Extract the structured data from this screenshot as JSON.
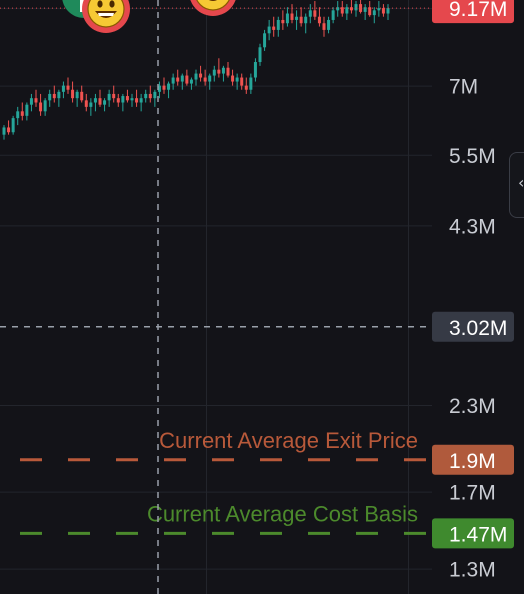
{
  "chart_data": {
    "type": "candlestick",
    "y_scale": "log",
    "ylim": [
      1.19,
      9.5
    ],
    "y_tick_labels": [
      {
        "value": 9.17,
        "label": "9.17M",
        "tag": true,
        "tag_color": "#e5484d"
      },
      {
        "value": 7.0,
        "label": "7M"
      },
      {
        "value": 5.5,
        "label": "5.5M"
      },
      {
        "value": 4.3,
        "label": "4.3M"
      },
      {
        "value": 3.02,
        "label": "3.02M",
        "tag": true,
        "tag_color": "#363a45"
      },
      {
        "value": 2.3,
        "label": "2.3M"
      },
      {
        "value": 1.9,
        "label": "1.9M",
        "tag": true,
        "tag_color": "#b05a3c"
      },
      {
        "value": 1.7,
        "label": "1.7M"
      },
      {
        "value": 1.47,
        "label": "1.47M",
        "tag": true,
        "tag_color": "#3f8a2e"
      },
      {
        "value": 1.3,
        "label": "1.3M"
      }
    ],
    "reference_lines": [
      {
        "name": "Current Average Exit Price",
        "value": 1.9,
        "color": "#b8593a"
      },
      {
        "name": "Current Average Cost Basis",
        "value": 1.47,
        "color": "#4c8a2c"
      }
    ],
    "last_price": 9.17,
    "crosshair_price": 3.02,
    "grid": true,
    "colors": {
      "up": "#26a69a",
      "down": "#ef5350",
      "last_price_line": "#e5484d",
      "crosshair": "#9aa0aa"
    },
    "markers": [
      {
        "icon": "smiley-face-icon",
        "border": "#e5484d"
      },
      {
        "icon": "smiley-face-icon",
        "border": "#e5484d"
      },
      {
        "icon": "green-badge-icon",
        "border": "#1f8a5b"
      }
    ],
    "candles_ohlc": [
      [
        5.9,
        6.1,
        5.8,
        6.05
      ],
      [
        6.05,
        6.2,
        5.9,
        5.95
      ],
      [
        5.95,
        6.3,
        5.9,
        6.25
      ],
      [
        6.25,
        6.5,
        6.1,
        6.4
      ],
      [
        6.4,
        6.6,
        6.2,
        6.3
      ],
      [
        6.3,
        6.6,
        6.2,
        6.55
      ],
      [
        6.55,
        6.8,
        6.4,
        6.7
      ],
      [
        6.7,
        6.9,
        6.5,
        6.6
      ],
      [
        6.6,
        6.8,
        6.3,
        6.4
      ],
      [
        6.4,
        6.7,
        6.3,
        6.65
      ],
      [
        6.65,
        6.9,
        6.5,
        6.8
      ],
      [
        6.8,
        7.0,
        6.6,
        6.7
      ],
      [
        6.7,
        6.9,
        6.5,
        6.85
      ],
      [
        6.85,
        7.1,
        6.7,
        7.0
      ],
      [
        7.0,
        7.2,
        6.8,
        6.9
      ],
      [
        6.9,
        7.1,
        6.6,
        6.7
      ],
      [
        6.7,
        6.9,
        6.5,
        6.85
      ],
      [
        6.85,
        7.0,
        6.6,
        6.65
      ],
      [
        6.65,
        6.8,
        6.4,
        6.5
      ],
      [
        6.5,
        6.7,
        6.3,
        6.6
      ],
      [
        6.6,
        6.8,
        6.4,
        6.7
      ],
      [
        6.7,
        6.9,
        6.5,
        6.55
      ],
      [
        6.55,
        6.7,
        6.4,
        6.65
      ],
      [
        6.65,
        6.9,
        6.5,
        6.8
      ],
      [
        6.8,
        7.0,
        6.6,
        6.7
      ],
      [
        6.7,
        6.8,
        6.5,
        6.6
      ],
      [
        6.6,
        6.8,
        6.4,
        6.75
      ],
      [
        6.75,
        6.9,
        6.6,
        6.65
      ],
      [
        6.65,
        6.8,
        6.5,
        6.7
      ],
      [
        6.7,
        6.9,
        6.5,
        6.6
      ],
      [
        6.6,
        6.8,
        6.4,
        6.7
      ],
      [
        6.7,
        6.9,
        6.6,
        6.8
      ],
      [
        6.8,
        7.0,
        6.6,
        6.7
      ],
      [
        6.7,
        6.9,
        6.5,
        6.85
      ],
      [
        6.85,
        7.1,
        6.7,
        7.0
      ],
      [
        7.0,
        7.2,
        6.8,
        6.9
      ],
      [
        6.9,
        7.1,
        6.7,
        7.05
      ],
      [
        7.05,
        7.3,
        6.9,
        7.2
      ],
      [
        7.2,
        7.4,
        7.0,
        7.1
      ],
      [
        7.1,
        7.3,
        6.9,
        7.25
      ],
      [
        7.25,
        7.4,
        7.0,
        7.05
      ],
      [
        7.05,
        7.2,
        6.9,
        7.15
      ],
      [
        7.15,
        7.4,
        7.0,
        7.3
      ],
      [
        7.3,
        7.5,
        7.1,
        7.2
      ],
      [
        7.2,
        7.4,
        7.0,
        7.1
      ],
      [
        7.1,
        7.3,
        6.9,
        7.25
      ],
      [
        7.25,
        7.5,
        7.1,
        7.4
      ],
      [
        7.4,
        7.7,
        7.2,
        7.3
      ],
      [
        7.3,
        7.5,
        7.1,
        7.45
      ],
      [
        7.45,
        7.6,
        7.2,
        7.25
      ],
      [
        7.25,
        7.4,
        7.0,
        7.1
      ],
      [
        7.1,
        7.3,
        6.9,
        7.2
      ],
      [
        7.2,
        7.3,
        6.9,
        7.0
      ],
      [
        7.0,
        7.2,
        6.8,
        6.9
      ],
      [
        6.9,
        7.3,
        6.8,
        7.2
      ],
      [
        7.2,
        7.7,
        7.1,
        7.6
      ],
      [
        7.6,
        8.1,
        7.5,
        8.0
      ],
      [
        8.0,
        8.5,
        7.9,
        8.4
      ],
      [
        8.4,
        8.8,
        8.2,
        8.6
      ],
      [
        8.6,
        8.9,
        8.3,
        8.5
      ],
      [
        8.5,
        8.9,
        8.3,
        8.8
      ],
      [
        8.8,
        9.1,
        8.5,
        8.7
      ],
      [
        8.7,
        9.2,
        8.6,
        9.0
      ],
      [
        9.0,
        9.3,
        8.7,
        8.8
      ],
      [
        8.8,
        9.1,
        8.5,
        8.9
      ],
      [
        8.9,
        9.2,
        8.6,
        8.7
      ],
      [
        8.7,
        9.0,
        8.4,
        8.9
      ],
      [
        8.9,
        9.3,
        8.7,
        9.1
      ],
      [
        9.1,
        9.4,
        8.8,
        8.9
      ],
      [
        8.9,
        9.2,
        8.6,
        8.7
      ],
      [
        8.7,
        8.9,
        8.3,
        8.5
      ],
      [
        8.5,
        8.9,
        8.4,
        8.8
      ],
      [
        8.8,
        9.2,
        8.7,
        9.1
      ],
      [
        9.1,
        9.4,
        8.9,
        9.2
      ],
      [
        9.2,
        9.4,
        8.9,
        9.0
      ],
      [
        9.0,
        9.3,
        8.8,
        9.2
      ],
      [
        9.2,
        9.5,
        9.0,
        9.1
      ],
      [
        9.1,
        9.4,
        8.9,
        9.3
      ],
      [
        9.3,
        9.5,
        9.0,
        9.05
      ],
      [
        9.05,
        9.3,
        8.8,
        9.2
      ],
      [
        9.2,
        9.4,
        8.9,
        8.95
      ],
      [
        8.95,
        9.2,
        8.7,
        9.1
      ],
      [
        9.1,
        9.4,
        8.9,
        9.17
      ],
      [
        9.17,
        9.3,
        8.9,
        9.0
      ],
      [
        9.0,
        9.3,
        8.8,
        9.17
      ]
    ]
  }
}
